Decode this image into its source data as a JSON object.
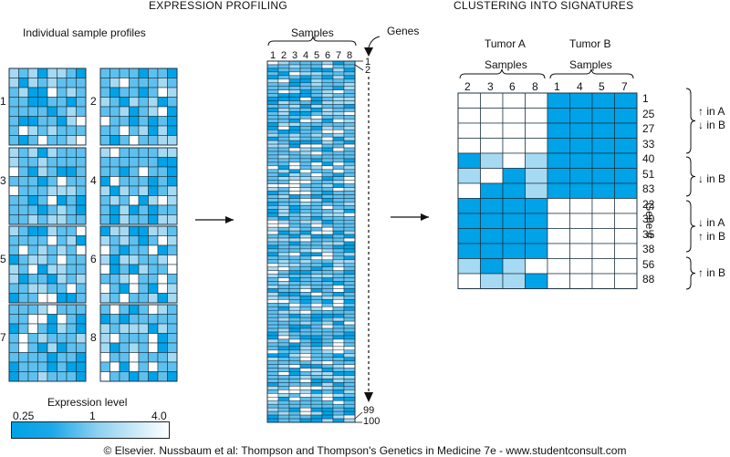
{
  "titles": {
    "left": "EXPRESSION PROFILING",
    "right": "CLUSTERING INTO SIGNATURES"
  },
  "panel1": {
    "heading": "Individual sample profiles",
    "sample_numbers": [
      "1",
      "2",
      "3",
      "4",
      "5",
      "6",
      "7",
      "8"
    ]
  },
  "panel2": {
    "samples_label": "Samples",
    "genes_label": "Genes",
    "column_numbers": [
      "1",
      "2",
      "3",
      "4",
      "5",
      "6",
      "7",
      "8"
    ],
    "row_markers": [
      "1",
      "2",
      "99",
      "100"
    ]
  },
  "panel3": {
    "group_a_line1": "Tumor A",
    "group_a_line2": "Samples",
    "group_b_line1": "Tumor B",
    "group_b_line2": "Samples",
    "column_numbers": [
      "2",
      "3",
      "6",
      "8",
      "1",
      "4",
      "5",
      "7"
    ],
    "gene_ids": [
      "1",
      "25",
      "27",
      "33",
      "40",
      "51",
      "83",
      "22",
      "30",
      "35",
      "38",
      "56",
      "88"
    ],
    "gene_axis_label": "Gene #",
    "bracket_annotations": [
      {
        "line1": "↑ in A",
        "line2": "↓ in B"
      },
      {
        "line1": "↓ in B",
        "line2": ""
      },
      {
        "line1": "↓ in A",
        "line2": "↑ in B"
      },
      {
        "line1": "↑ in B",
        "line2": ""
      }
    ],
    "cell_levels": [
      [
        0,
        0,
        0,
        0,
        2,
        2,
        2,
        2
      ],
      [
        0,
        0,
        0,
        0,
        2,
        2,
        2,
        2
      ],
      [
        0,
        0,
        0,
        0,
        2,
        2,
        2,
        2
      ],
      [
        0,
        0,
        0,
        0,
        2,
        2,
        2,
        2
      ],
      [
        2,
        1,
        0,
        1,
        2,
        2,
        2,
        2
      ],
      [
        1,
        0,
        2,
        1,
        2,
        2,
        2,
        2
      ],
      [
        0,
        2,
        2,
        1,
        2,
        2,
        2,
        2
      ],
      [
        2,
        2,
        2,
        2,
        0,
        0,
        0,
        0
      ],
      [
        2,
        2,
        2,
        2,
        0,
        0,
        0,
        0
      ],
      [
        2,
        2,
        2,
        2,
        0,
        0,
        0,
        0
      ],
      [
        2,
        2,
        2,
        2,
        0,
        0,
        0,
        0
      ],
      [
        1,
        2,
        1,
        0,
        0,
        0,
        0,
        0
      ],
      [
        0,
        1,
        1,
        2,
        0,
        0,
        0,
        0
      ]
    ]
  },
  "legend": {
    "title": "Expression level",
    "min_label": "0.25",
    "mid_label": "1",
    "max_label": "4.0"
  },
  "colors": {
    "high": "#00a2e8",
    "mid": "#5ec0ee",
    "low": "#a6daf3",
    "white": "#ffffff",
    "grid": "#1f3340"
  },
  "footer": "© Elsevier. Nussbaum et al: Thompson and Thompson's Genetics in Medicine 7e - www.studentconsult.com"
}
